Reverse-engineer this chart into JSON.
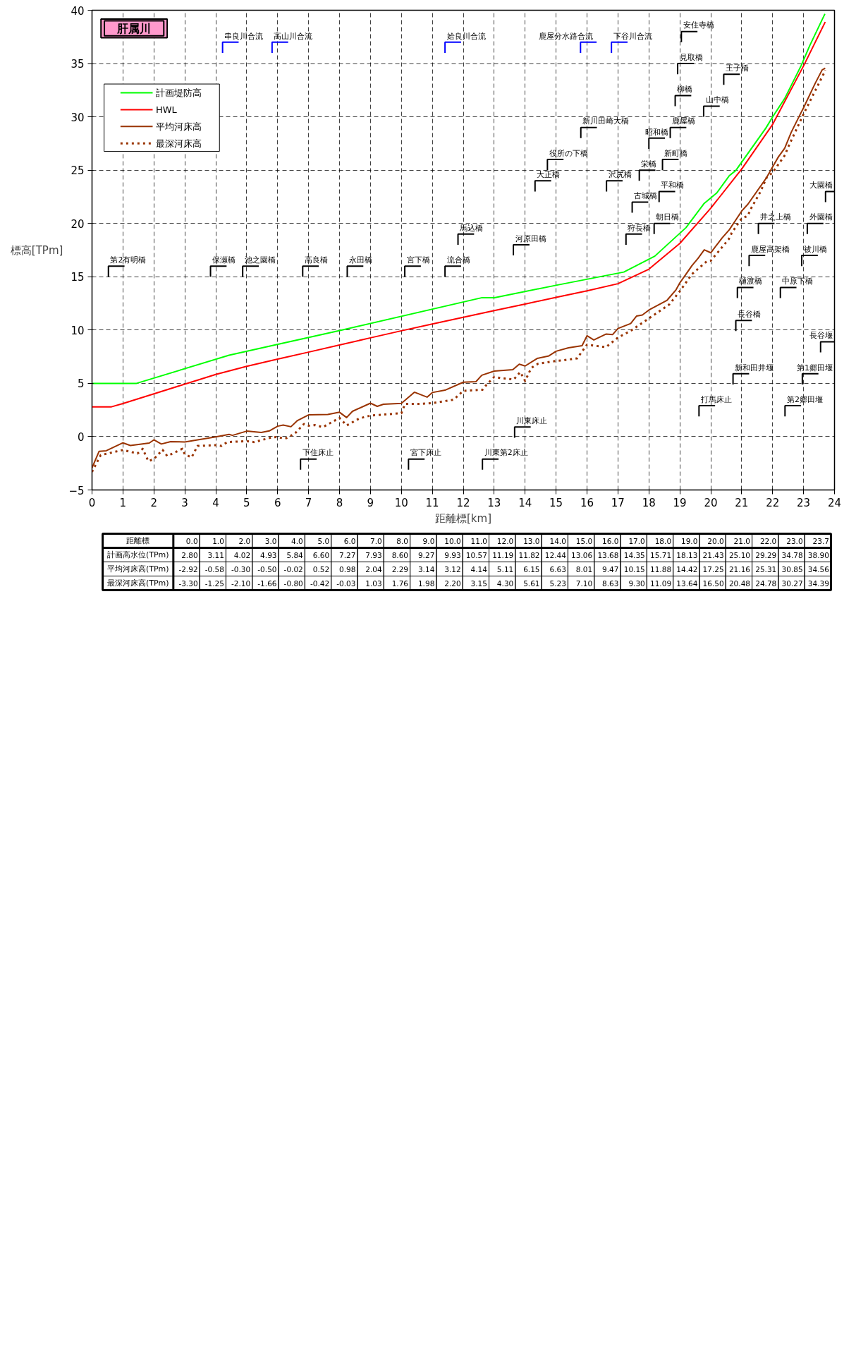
{
  "chart_data": {
    "type": "line",
    "title": "肝属川",
    "xlabel": "距離標[km]",
    "ylabel": "標高[TPm]",
    "xlim": [
      0,
      24
    ],
    "xticks": [
      0,
      1,
      2,
      3,
      4,
      5,
      6,
      7,
      8,
      9,
      10,
      11,
      12,
      13,
      14,
      15,
      16,
      17,
      18,
      19,
      20,
      21,
      22,
      23,
      24
    ],
    "ylim": [
      -5,
      40
    ],
    "yticks": [
      -5,
      0,
      5,
      10,
      15,
      20,
      25,
      30,
      35,
      40
    ],
    "grid": true,
    "legend": "top left",
    "line_style": "solid",
    "series": [
      {
        "name": "計画堤防高",
        "color": "#00ff00",
        "x": [
          0,
          1.44,
          4.43,
          5.73,
          8.01,
          12.61,
          13.01,
          15.0,
          17.19,
          18.19,
          19.2,
          19.79,
          20.2,
          20.6,
          20.81,
          21.78,
          22.01,
          22.39,
          22.92,
          23.2,
          23.69
        ],
        "values": [
          5.0,
          5.0,
          7.64,
          8.49,
          9.96,
          13.04,
          13.04,
          14.2,
          15.44,
          16.93,
          19.61,
          21.89,
          22.88,
          24.48,
          24.97,
          28.94,
          30.04,
          31.72,
          34.8,
          36.68,
          39.66
        ]
      },
      {
        "name": "HWL",
        "color": "#ff0000",
        "x": [
          0,
          0.63,
          1,
          2,
          3,
          4,
          5,
          6,
          7,
          8,
          9,
          10,
          11,
          12,
          13,
          14,
          15,
          16,
          17,
          18,
          19,
          20,
          21,
          22,
          23,
          23.7
        ],
        "values": [
          2.8,
          2.8,
          3.11,
          4.02,
          4.93,
          5.84,
          6.6,
          7.27,
          7.93,
          8.6,
          9.27,
          9.93,
          10.57,
          11.19,
          11.82,
          12.44,
          13.06,
          13.68,
          14.35,
          15.71,
          18.13,
          21.43,
          25.1,
          29.29,
          34.78,
          38.9
        ]
      },
      {
        "name": "平均河床高",
        "color": "#993300",
        "x": [
          0,
          0.23,
          0.46,
          1,
          1.24,
          1.85,
          2,
          2.24,
          2.54,
          3,
          4,
          4.43,
          4.54,
          5,
          5.47,
          5.73,
          6,
          6.18,
          6.43,
          6.63,
          7,
          7.62,
          8,
          8.23,
          8.42,
          9,
          9.22,
          9.42,
          10,
          10.42,
          10.83,
          11,
          11.41,
          12,
          12.41,
          12.6,
          13,
          13.6,
          13.81,
          14,
          14.39,
          14.77,
          15,
          15.4,
          15.84,
          16,
          16.22,
          16.61,
          16.83,
          17,
          17.41,
          17.6,
          17.79,
          18,
          18.59,
          18.88,
          19,
          19.2,
          19.39,
          19.59,
          19.79,
          20,
          20.36,
          20.6,
          21,
          21.2,
          21.8,
          22,
          22.19,
          22.39,
          22.6,
          22.89,
          23,
          23.37,
          23.6,
          23.7
        ],
        "values": [
          -2.92,
          -1.37,
          -1.32,
          -0.58,
          -0.83,
          -0.6,
          -0.3,
          -0.69,
          -0.47,
          -0.5,
          -0.02,
          0.21,
          0.12,
          0.52,
          0.39,
          0.54,
          0.98,
          1.09,
          0.93,
          1.49,
          2.04,
          2.08,
          2.29,
          1.79,
          2.38,
          3.14,
          2.84,
          3.04,
          3.12,
          4.17,
          3.71,
          4.14,
          4.36,
          5.11,
          5.16,
          5.76,
          6.15,
          6.29,
          6.8,
          6.63,
          7.34,
          7.58,
          8.01,
          8.33,
          8.53,
          9.47,
          9.07,
          9.62,
          9.58,
          10.15,
          10.61,
          11.31,
          11.41,
          11.88,
          12.8,
          13.79,
          14.42,
          15.24,
          16.04,
          16.73,
          17.53,
          17.25,
          18.62,
          19.41,
          21.16,
          21.8,
          24.28,
          25.31,
          26.26,
          27.06,
          28.54,
          30.23,
          30.85,
          33.11,
          34.4,
          34.56
        ]
      },
      {
        "name": "最深河床高",
        "color": "#993300",
        "line_style": "dotted",
        "x": [
          0,
          0.28,
          1,
          1.47,
          1.64,
          1.82,
          2,
          2.28,
          2.43,
          2.92,
          3,
          3.22,
          3.41,
          4,
          4.19,
          4.37,
          5,
          5.24,
          5.82,
          6,
          6.24,
          6.56,
          6.85,
          7,
          7.2,
          7.46,
          8,
          8.23,
          8.65,
          9,
          10,
          10.12,
          10.6,
          11,
          11.69,
          11.95,
          12,
          12.62,
          12.75,
          13,
          13.2,
          13.63,
          13.84,
          14,
          14.2,
          14.42,
          15,
          15.16,
          15.68,
          16,
          16.61,
          17,
          17.41,
          18,
          18.66,
          19,
          19.39,
          19.87,
          20,
          20.58,
          20.68,
          21,
          21.19,
          21.32,
          21.61,
          21.8,
          22,
          22.41,
          22.47,
          23,
          23.66,
          23.7
        ],
        "values": [
          -3.3,
          -1.73,
          -1.25,
          -1.58,
          -1.14,
          -2.3,
          -2.1,
          -1.23,
          -1.82,
          -1.14,
          -1.66,
          -1.94,
          -0.87,
          -0.8,
          -0.87,
          -0.51,
          -0.42,
          -0.51,
          -0.06,
          -0.03,
          -0.2,
          0.3,
          1.19,
          1.03,
          1.09,
          0.89,
          1.76,
          1.05,
          1.72,
          1.98,
          2.2,
          3.08,
          3.08,
          3.15,
          3.47,
          4.17,
          4.3,
          4.4,
          4.86,
          5.61,
          5.5,
          5.36,
          6.06,
          5.23,
          6.45,
          6.84,
          7.1,
          7.14,
          7.34,
          8.63,
          8.39,
          9.3,
          9.92,
          11.09,
          12.4,
          13.64,
          15.24,
          16.44,
          16.5,
          18.52,
          19.12,
          20.48,
          20.7,
          21.5,
          22.99,
          24.28,
          24.78,
          26.46,
          26.96,
          30.27,
          34.1,
          34.39
        ]
      }
    ],
    "annotations": [
      "距離標",
      "0.0",
      "1.0",
      "2.0",
      "3.0",
      "4.0",
      "5.0",
      "6.0",
      "7.0",
      "8.0",
      "9.0",
      "10.0",
      "11.0",
      "12.0",
      "13.0",
      "14.0",
      "15.0",
      "16.0",
      "17.0",
      "18.0",
      "19.0",
      "20.0",
      "21.0",
      "22.0",
      "23.0",
      "23.7",
      "計画高水位(TPm)",
      "2.80",
      "3.11",
      "4.02",
      "4.93",
      "5.84",
      "6.60",
      "7.27",
      "7.93",
      "8.60",
      "9.27",
      "9.93",
      "10.57",
      "11.19",
      "11.82",
      "12.44",
      "13.06",
      "13.68",
      "14.35",
      "15.71",
      "18.13",
      "21.43",
      "25.10",
      "29.29",
      "34.78",
      "38.90",
      "平均河床高(TPm)",
      "-2.92",
      "-0.58",
      "-0.30",
      "-0.50",
      "-0.02",
      "0.52",
      "0.98",
      "2.04",
      "2.29",
      "3.14",
      "3.12",
      "4.14",
      "5.11",
      "6.15",
      "6.63",
      "8.01",
      "9.47",
      "10.15",
      "11.88",
      "14.42",
      "17.25",
      "21.16",
      "25.31",
      "30.85",
      "34.56",
      "最深河床高(TPm)",
      "-3.30",
      "-1.25",
      "-2.10",
      "-1.66",
      "-0.80",
      "-0.42",
      "-0.03",
      "1.03",
      "1.76",
      "1.98",
      "2.20",
      "3.15",
      "4.30",
      "5.61",
      "5.23",
      "7.10",
      "8.63",
      "9.30",
      "11.09",
      "13.64",
      "16.50",
      "20.48",
      "24.78",
      "30.27",
      "34.39",
      "第2有明橋",
      "保瀬橋",
      "池之園橋",
      "串良川合流",
      "高山川合流",
      "高良橋",
      "永田橋",
      "宮下橋",
      "流合橋",
      "馬込橋",
      "姶良川合流",
      "河原田橋",
      "大正橋",
      "役所の下橋",
      "鹿屋分水路合流",
      "新川田崎大橋",
      "沢尻橋",
      "下谷川合流",
      "狩長橋",
      "古城橋",
      "栄橋",
      "昭和橋",
      "朝日橋",
      "平和橋",
      "新町橋",
      "鹿屋橋",
      "柳橋",
      "見取橋",
      "安住寺橋",
      "山中橋",
      "王子橋",
      "樋渡橋",
      "鹿屋高架橋",
      "井之上橋",
      "中原下橋",
      "祓川橋",
      "外園橋",
      "大園橋",
      "下住床止",
      "宮下床止",
      "川東第2床止",
      "川東床止",
      "打馬床止",
      "新和田井堰",
      "長谷橋",
      "第2郷田堰",
      "第1郷田堰",
      "長谷堰"
    ]
  }
}
